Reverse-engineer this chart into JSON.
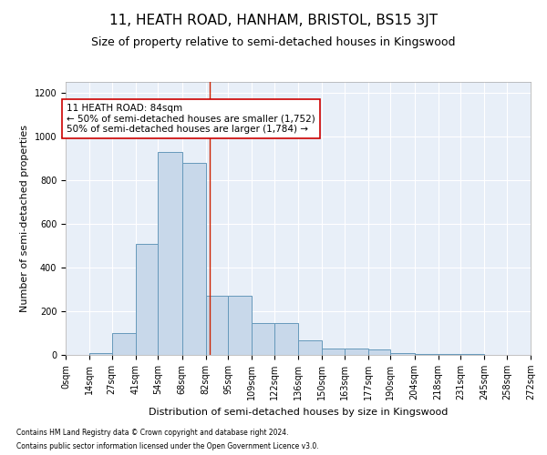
{
  "title": "11, HEATH ROAD, HANHAM, BRISTOL, BS15 3JT",
  "subtitle": "Size of property relative to semi-detached houses in Kingswood",
  "xlabel": "Distribution of semi-detached houses by size in Kingswood",
  "ylabel": "Number of semi-detached properties",
  "footnote1": "Contains HM Land Registry data © Crown copyright and database right 2024.",
  "footnote2": "Contains public sector information licensed under the Open Government Licence v3.0.",
  "property_label": "11 HEATH ROAD: 84sqm",
  "arrow_left": "← 50% of semi-detached houses are smaller (1,752)",
  "arrow_right": "50% of semi-detached houses are larger (1,784) →",
  "property_size": 84,
  "bin_edges": [
    0,
    14,
    27,
    41,
    54,
    68,
    82,
    95,
    109,
    122,
    136,
    150,
    163,
    177,
    190,
    204,
    218,
    231,
    245,
    258,
    272
  ],
  "bin_counts": [
    2,
    10,
    100,
    510,
    930,
    880,
    270,
    270,
    145,
    145,
    65,
    30,
    30,
    25,
    10,
    5,
    5,
    3,
    2,
    0
  ],
  "bar_color": "#c8d8ea",
  "bar_edge_color": "#6699bb",
  "red_line_x": 84,
  "annotation_box_color": "#ffffff",
  "annotation_box_edge": "#cc0000",
  "ylim": [
    0,
    1250
  ],
  "yticks": [
    0,
    200,
    400,
    600,
    800,
    1000,
    1200
  ],
  "background_color": "#e8eff8",
  "title_fontsize": 11,
  "subtitle_fontsize": 9,
  "tick_label_fontsize": 7,
  "ylabel_fontsize": 8,
  "xlabel_fontsize": 8
}
